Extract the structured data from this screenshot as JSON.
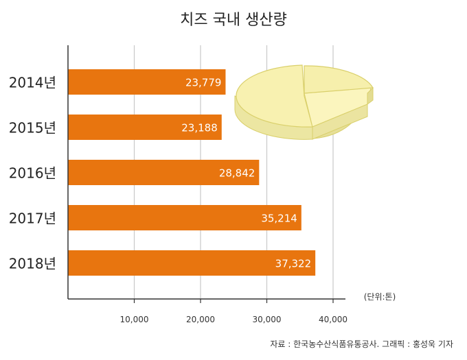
{
  "chart_data": {
    "type": "bar",
    "orientation": "horizontal",
    "title": "치즈 국내 생산량",
    "categories": [
      "2014년",
      "2015년",
      "2016년",
      "2017년",
      "2018년"
    ],
    "values": [
      23779,
      23188,
      28842,
      35214,
      37322
    ],
    "value_labels": [
      "23,779",
      "23,188",
      "28,842",
      "35,214",
      "37,322"
    ],
    "xlim": [
      0,
      40000
    ],
    "x_ticks": [
      10000,
      20000,
      30000,
      40000
    ],
    "x_tick_labels": [
      "10,000",
      "20,000",
      "30,000",
      "40,000"
    ],
    "unit": "(단위:톤)",
    "source": "자료 : 한국농수산식품유통공사. 그래픽 : 홍성욱 기자",
    "grid": true,
    "bar_color": "#e8750f",
    "grid_color": "#c8c8c8",
    "decoration": "cheese-wheel"
  }
}
